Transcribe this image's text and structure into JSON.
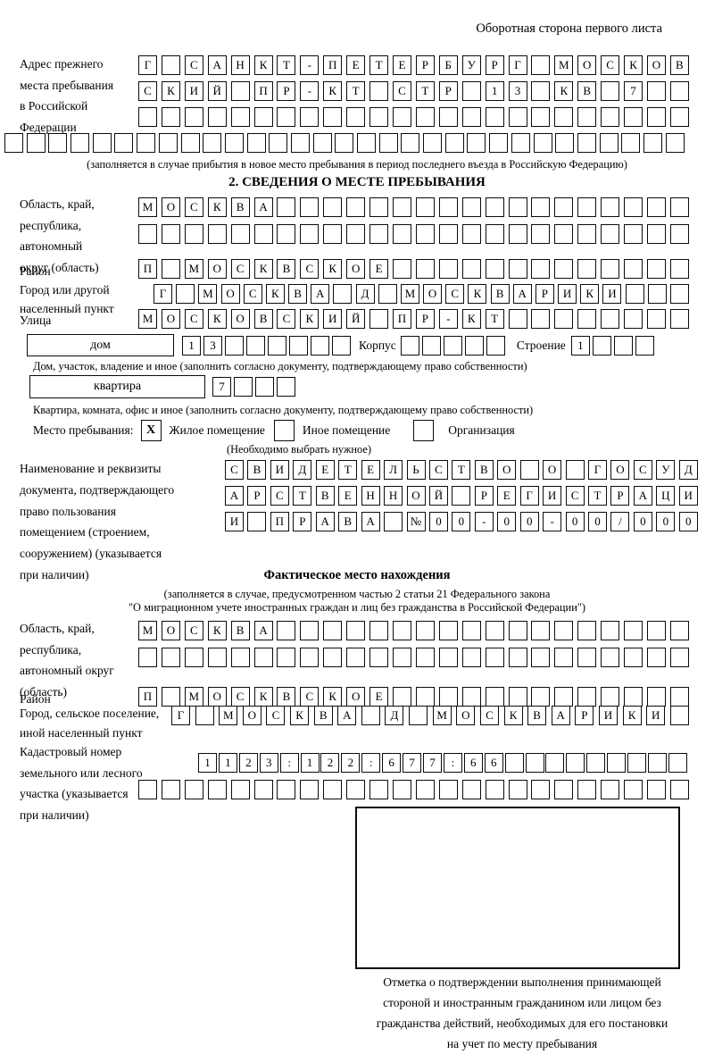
{
  "page": {
    "side_note": "Оборотная сторона первого листа"
  },
  "prev_address": {
    "label": "Адрес прежнего\nместа пребывания\nв Российской\nФедерации",
    "row1": "Г САНКТ-ПЕТЕРБУРГ МОСКОВ",
    "row2": "СКИЙ ПР-КТ СТР 13 КВ 7",
    "row3": 24,
    "row4": 31,
    "note": "(заполняется в случае прибытия в новое место пребывания в период последнего въезда в Российскую Федерацию)"
  },
  "section2": {
    "title": "2. СВЕДЕНИЯ О МЕСТЕ ПРЕБЫВАНИЯ",
    "region": {
      "label": "Область, край,\nреспублика,\nавтономный\nокруг (область)",
      "row1": "МОСКВА",
      "row2": 24
    },
    "district": {
      "label": "Район",
      "row": "П МОСКВСКОЕ"
    },
    "city": {
      "label": "Город или другой\nнаселенный пункт",
      "row": "Г МОСКВА Д МОСКВАРИКИ"
    },
    "street": {
      "label": "Улица",
      "row": "МОСКОВСКИЙ ПР-КТ"
    },
    "house": {
      "box_label": "дом",
      "cells": "13",
      "korpus_label": "Корпус",
      "korpus_cells": 5,
      "stroenie_label": "Строение",
      "stroenie_cells": "1",
      "note": "Дом, участок, владение и иное (заполнить согласно документу, подтверждающему право собственности)"
    },
    "apartment": {
      "box_label": "квартира",
      "cells": "7",
      "note": "Квартира, комната, офис и иное (заполнить согласно документу, подтверждающему право собственности)"
    },
    "stay": {
      "label": "Место пребывания:",
      "options": [
        {
          "mark": "X",
          "label": "Жилое помещение"
        },
        {
          "mark": "",
          "label": "Иное помещение"
        },
        {
          "mark": "",
          "label": "Организация"
        }
      ],
      "note": "(Необходимо выбрать нужное)"
    },
    "document": {
      "label": "Наименование и реквизиты\nдокумента, подтверждающего\nправо пользования\nпомещением (строением,\nсооружением) (указывается\nпри наличии)",
      "row1": "СВИДЕТЕЛЬСТВО О ГОСУД",
      "row2": "АРСТВЕННОЙ РЕГИСТРАЦИ",
      "row3": "И ПРАВА №00-00-00/000"
    }
  },
  "actual_location": {
    "title": "Фактическое место нахождения",
    "note1": "(заполняется в случае, предусмотренном частью 2 статьи 21 Федерального закона",
    "note2": "\"О миграционном учете иностранных граждан и лиц без гражданства в Российской Федерации\")",
    "region": {
      "label": "Область, край,\nреспублика,\nавтономный округ\n(область)",
      "row1": "МОСКВА",
      "row2": 24
    },
    "district": {
      "label": "Район",
      "row": "П МОСКВСКОЕ"
    },
    "city": {
      "label": "Город, сельское поселение,\nиной населенный пункт",
      "row": "Г МОСКВА Д МОСКВАРИКИ"
    },
    "cadastre": {
      "label": "Кадастровый номер\nземельного или лесного\nучастка (указывается\nпри наличии)",
      "row1": "1123:122:677:66",
      "row2": 24
    }
  },
  "stamp": {
    "caption": "Отметка о подтверждении выполнения принимающей\nстороной и иностранным гражданином или лицом без\nгражданства действий, необходимых для его постановки\nна учет по месту пребывания"
  }
}
